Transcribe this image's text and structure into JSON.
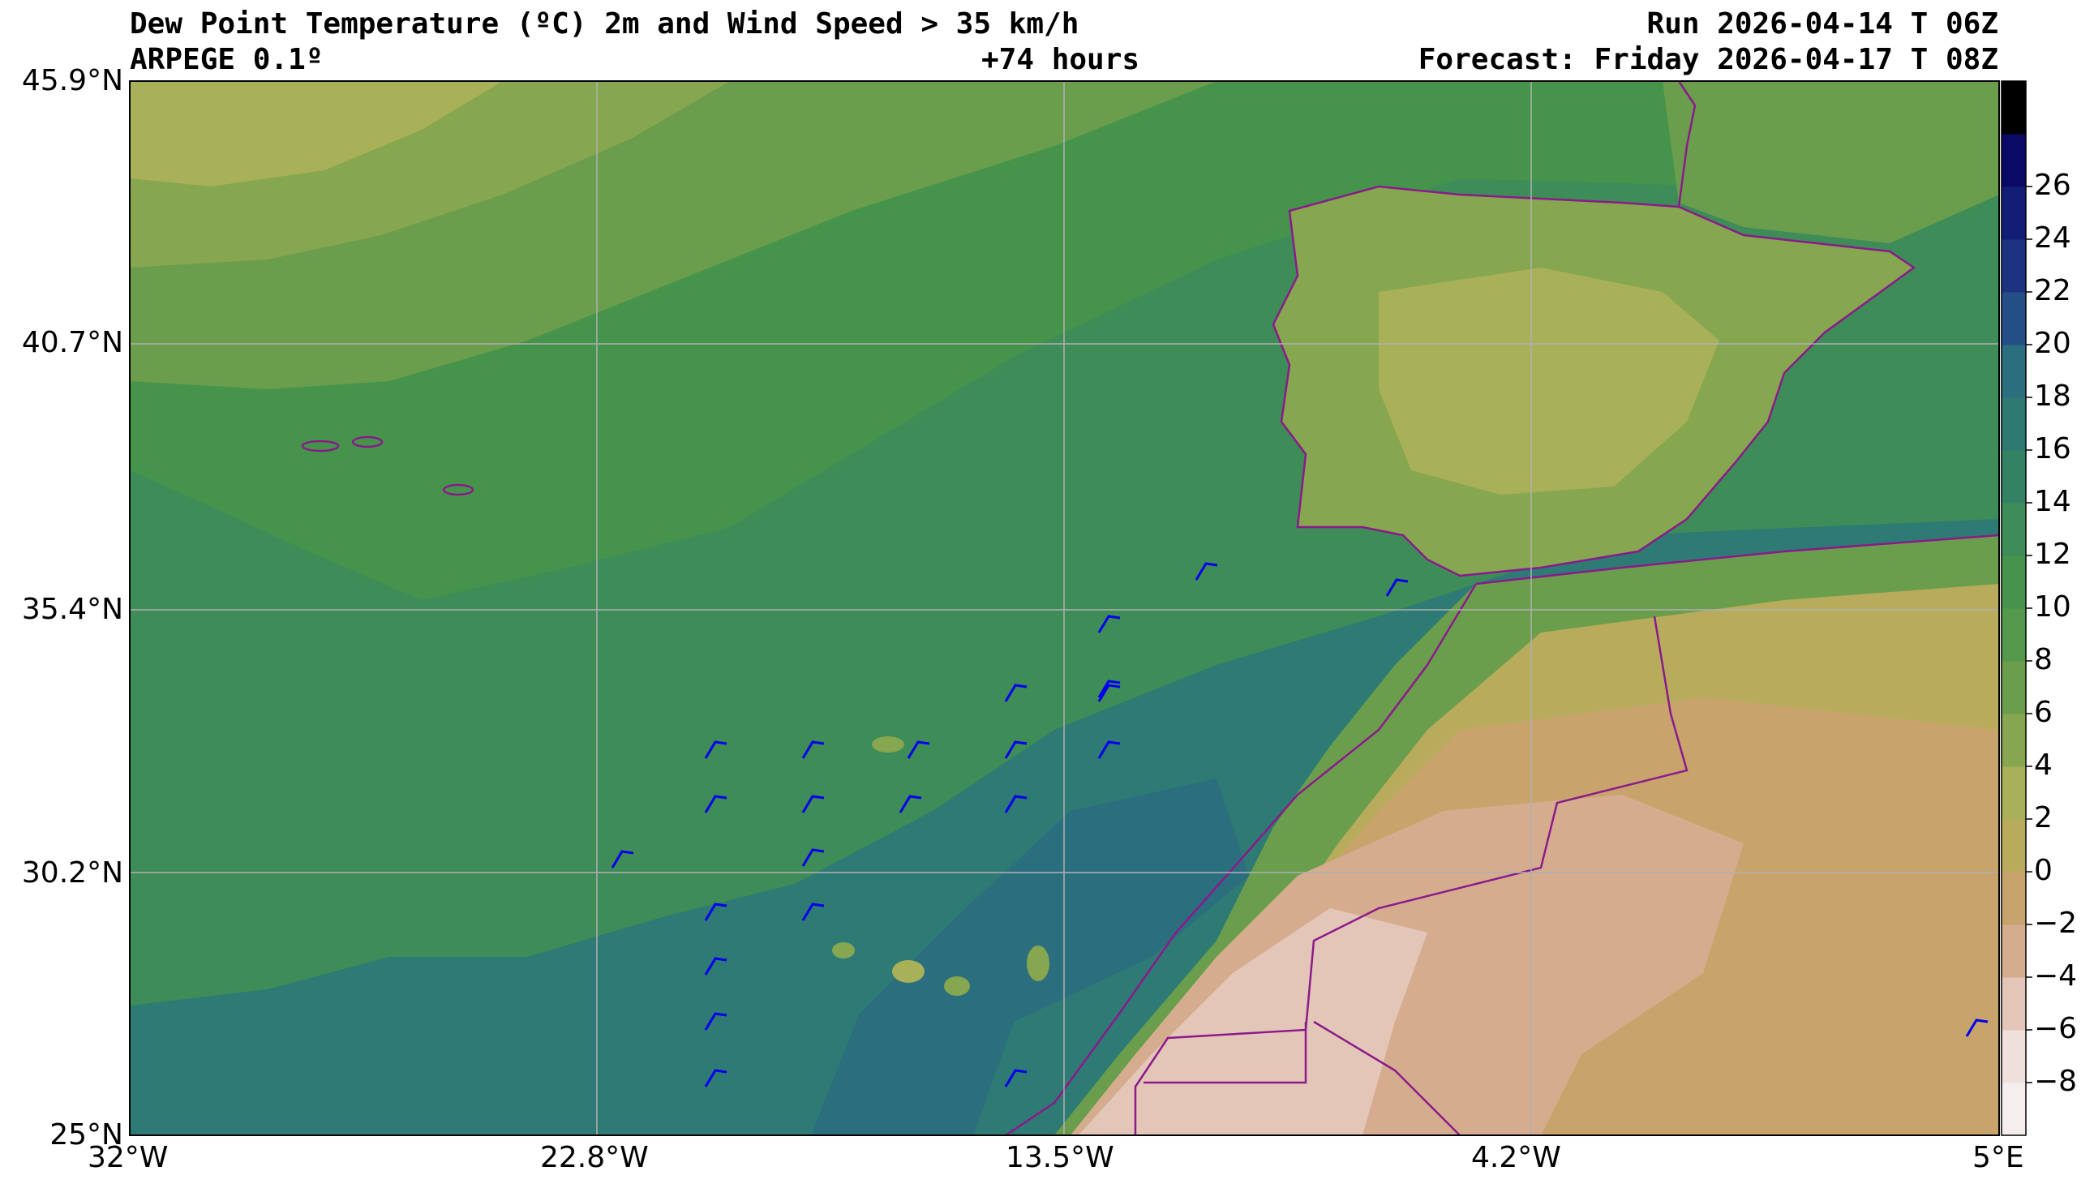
{
  "header": {
    "title_left": "Dew Point Temperature (ºC) 2m and Wind Speed > 35 km/h",
    "model": "ARPEGE 0.1º",
    "lead_time": "+74 hours",
    "run": "Run 2026-04-14 T 06Z",
    "forecast": "Forecast: Friday 2026-04-17 T 08Z"
  },
  "axes": {
    "lat_labels": [
      "45.9°N",
      "40.7°N",
      "35.4°N",
      "30.2°N",
      "25°N"
    ],
    "lon_labels": [
      "32°W",
      "22.8°W",
      "13.5°W",
      "4.2°W",
      "5°E"
    ]
  },
  "colorbar": {
    "labels": [
      "26",
      "24",
      "22",
      "20",
      "18",
      "16",
      "14",
      "12",
      "10",
      "8",
      "6",
      "4",
      "2",
      "0",
      "−2",
      "−4",
      "−6",
      "−8"
    ],
    "colors": [
      "#f6eeee",
      "#efe0dc",
      "#e4c6b8",
      "#d5ad8e",
      "#c8a46c",
      "#b8ac5c",
      "#a8b058",
      "#86a650",
      "#6a9e4c",
      "#559a4c",
      "#46944c",
      "#3e8c58",
      "#348264",
      "#2e7a72",
      "#2b6e7e",
      "#234e86",
      "#1c3480",
      "#121e76",
      "#0a0a66",
      "#000000"
    ]
  },
  "wind": {
    "barb_color": "#0000ee",
    "count": 24
  },
  "map_colors": {
    "coast": "#8b1a8b",
    "grid": "#b0b0b0"
  }
}
